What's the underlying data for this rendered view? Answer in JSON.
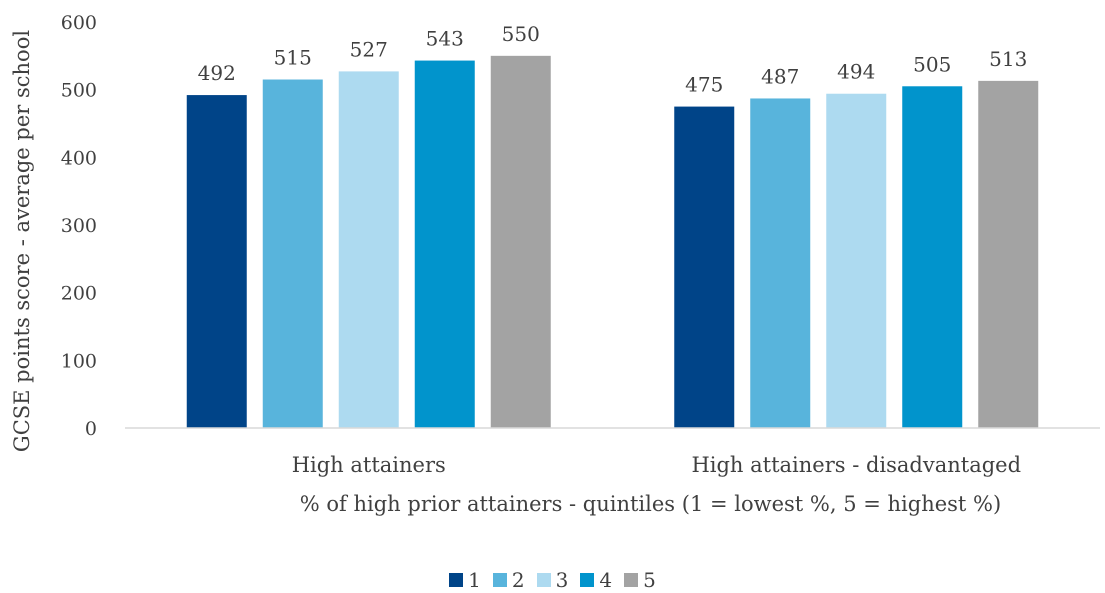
{
  "chart_data": {
    "type": "bar",
    "categories": [
      "High attainers",
      "High attainers - disadvantaged"
    ],
    "series": [
      {
        "name": "1",
        "color": "#004488",
        "values": [
          492,
          475
        ]
      },
      {
        "name": "2",
        "color": "#58b4dc",
        "values": [
          515,
          487
        ]
      },
      {
        "name": "3",
        "color": "#addaf0",
        "values": [
          527,
          494
        ]
      },
      {
        "name": "4",
        "color": "#0194cc",
        "values": [
          543,
          505
        ]
      },
      {
        "name": "5",
        "color": "#a3a3a3",
        "values": [
          550,
          513
        ]
      }
    ],
    "xlabel": "% of high prior attainers - quintiles (1 = lowest %, 5 = highest %)",
    "ylabel": "GCSE points score - average per school",
    "ylim": [
      0,
      600
    ],
    "yticks": [
      "0",
      "100",
      "200",
      "300",
      "400",
      "500",
      "600"
    ],
    "grid": false,
    "legend_position": "bottom"
  }
}
